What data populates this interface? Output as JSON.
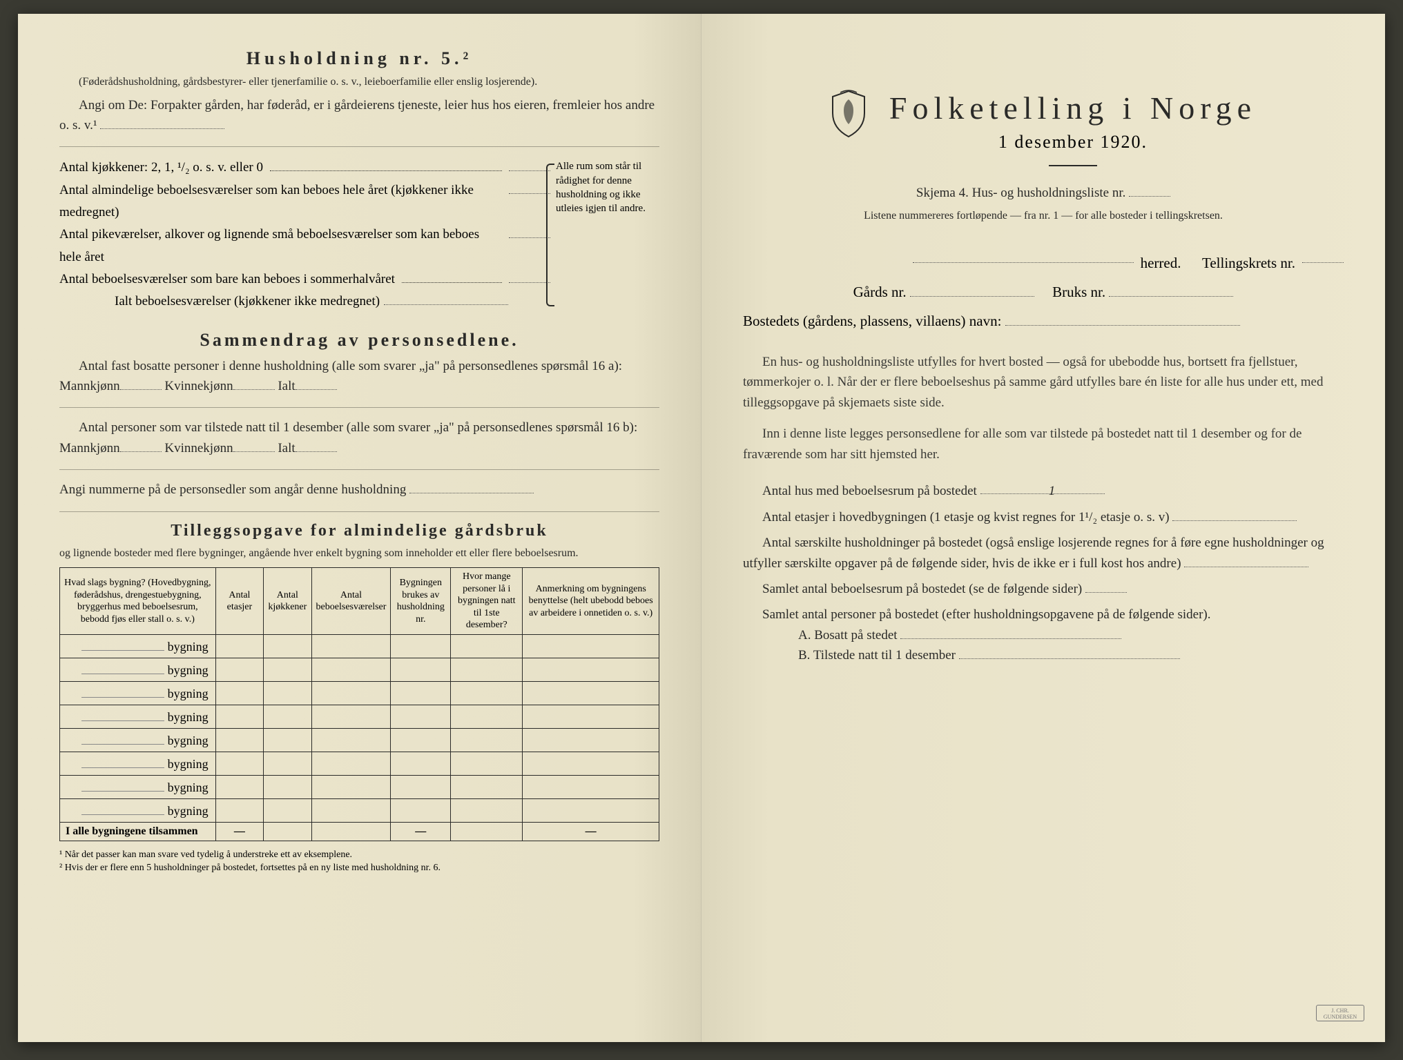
{
  "left": {
    "heading": "Husholdning nr. 5.²",
    "sub_note": "(Føderådshusholdning, gårdsbestyrer- eller tjenerfamilie o. s. v., leieboerfamilie eller enslig losjerende).",
    "line1": "Angi om De: Forpakter gården, har føderåd, er i gårdeierens tjeneste, leier hus hos eieren, fremleier hos andre o. s. v.¹",
    "kitchens": "Antal kjøkkener: 2, 1, ¹/₂ o. s. v. eller 0",
    "rooms1": "Antal almindelige beboelsesværelser som kan beboes hele året (kjøkkener ikke medregnet)",
    "rooms2": "Antal pikeværelser, alkover og lignende små beboelsesværelser som kan beboes hele året",
    "rooms3": "Antal beboelsesværelser som bare kan beboes i sommerhalvåret",
    "rooms_total": "Ialt beboelsesværelser (kjøkkener ikke medregnet)",
    "brace_text": "Alle rum som står til rådighet for denne husholdning og ikke utleies igjen til andre.",
    "summary_heading": "Sammendrag av personsedlene.",
    "summary_line1_a": "Antal fast bosatte personer i denne husholdning (alle som svarer „ja\" på personsedlenes spørsmål 16 a):",
    "summary_line2_a": "Antal personer som var tilstede natt til 1 desember (alle som svarer „ja\" på personsedlenes spørsmål 16 b):",
    "mann": "Mannkjønn",
    "kvinne": "Kvinnekjønn",
    "ialt": "Ialt",
    "angi_nr": "Angi nummerne på de personsedler som angår denne husholdning",
    "tillegg_heading": "Tilleggsopgave for almindelige gårdsbruk",
    "tillegg_sub": "og lignende bosteder med flere bygninger, angående hver enkelt bygning som inneholder ett eller flere beboelsesrum.",
    "table": {
      "columns": [
        "Hvad slags bygning?\n(Hovedbygning, føderådshus, drengestuebygning, bryggerhus med beboelsesrum, bebodd fjøs eller stall o. s. v.)",
        "Antal etasjer",
        "Antal kjøkkener",
        "Antal beboelsesværelser",
        "Bygningen brukes av husholdning nr.",
        "Hvor mange personer lå i bygningen natt til 1ste desember?",
        "Anmerkning om bygningens benyttelse (helt ubebodd beboes av arbeidere i onnetiden o. s. v.)"
      ],
      "row_label": "bygning",
      "row_count": 8,
      "total_label": "I alle bygningene tilsammen",
      "dash": "—"
    },
    "footnote1": "¹ Når det passer kan man svare ved tydelig å understreke ett av eksemplene.",
    "footnote2": "² Hvis der er flere enn 5 husholdninger på bostedet, fortsettes på en ny liste med husholdning nr. 6."
  },
  "right": {
    "title": "Folketelling i Norge",
    "date": "1 desember 1920.",
    "skjema": "Skjema 4.  Hus- og husholdningsliste nr.",
    "listnote": "Listene nummereres fortløpende — fra nr. 1 — for alle bosteder i tellingskretsen.",
    "herred": "herred.",
    "tellingskrets": "Tellingskrets nr.",
    "gards": "Gårds nr.",
    "bruks": "Bruks nr.",
    "bosted": "Bostedets (gårdens, plassens, villaens) navn:",
    "para1": "En hus- og husholdningsliste utfylles for hvert bosted — også for ubebodde hus, bortsett fra fjellstuer, tømmerkojer o. l.  Når der er flere beboelseshus på samme gård utfylles bare én liste for alle hus under ett, med tilleggsopgave på skjemaets siste side.",
    "para2": "Inn i denne liste legges personsedlene for alle som var tilstede på bostedet natt til 1 desember og for de fraværende som har sitt hjemsted her.",
    "q1": "Antal hus med beboelsesrum på bostedet",
    "q1_val": "1",
    "q2": "Antal etasjer i hovedbygningen (1 etasje og kvist regnes for 1¹/₂ etasje o. s. v)",
    "q3": "Antal særskilte husholdninger på bostedet (også enslige losjerende regnes for å føre egne husholdninger og utfyller særskilte opgaver på de følgende sider, hvis de ikke er i full kost hos andre)",
    "q4": "Samlet antal beboelsesrum på bostedet (se de følgende sider)",
    "q5": "Samlet antal personer på bostedet (efter husholdningsopgavene på de følgende sider).",
    "qa": "A.  Bosatt på stedet",
    "qb": "B.  Tilstede natt til 1 desember"
  },
  "colors": {
    "paper": "#ebe5cd",
    "ink": "#2a2a28"
  }
}
